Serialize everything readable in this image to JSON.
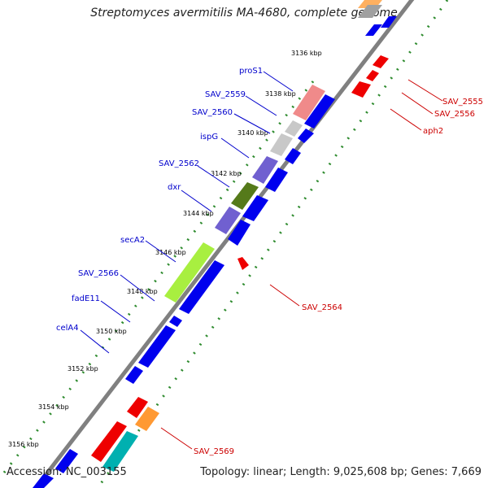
{
  "title": "Streptomyces avermitilis MA-4680, complete genome",
  "accession": "Accession: NC_003155",
  "summary": "Topology: linear; Length: 9,025,608 bp; Genes: 7,669",
  "ticks": [
    {
      "label": "3136 kbp"
    },
    {
      "label": "3138 kbp"
    },
    {
      "label": "3140 kbp"
    },
    {
      "label": "3142 kbp"
    },
    {
      "label": "3144 kbp"
    },
    {
      "label": "3146 kbp"
    },
    {
      "label": "3148 kbp"
    },
    {
      "label": "3150 kbp"
    },
    {
      "label": "3152 kbp"
    },
    {
      "label": "3154 kbp"
    },
    {
      "label": "3156 kbp"
    }
  ],
  "left_gene_labels": [
    {
      "text": "proS1"
    },
    {
      "text": "SAV_2559"
    },
    {
      "text": "SAV_2560"
    },
    {
      "text": "ispG"
    },
    {
      "text": "SAV_2562"
    },
    {
      "text": "dxr"
    },
    {
      "text": "secA2"
    },
    {
      "text": "SAV_2566"
    },
    {
      "text": "fadE11"
    },
    {
      "text": "celA4"
    }
  ],
  "right_gene_labels": [
    {
      "text": "SAV_2555"
    },
    {
      "text": "SAV_2556"
    },
    {
      "text": "aph2"
    },
    {
      "text": "SAV_2564"
    },
    {
      "text": "SAV_2569"
    }
  ],
  "colors": {
    "forward": "#0000ee",
    "reverse": "#ee0000",
    "backbone": "#808080",
    "label_blue": "#0000cc",
    "label_red": "#cc0000",
    "dots": "#2e8b2e"
  }
}
